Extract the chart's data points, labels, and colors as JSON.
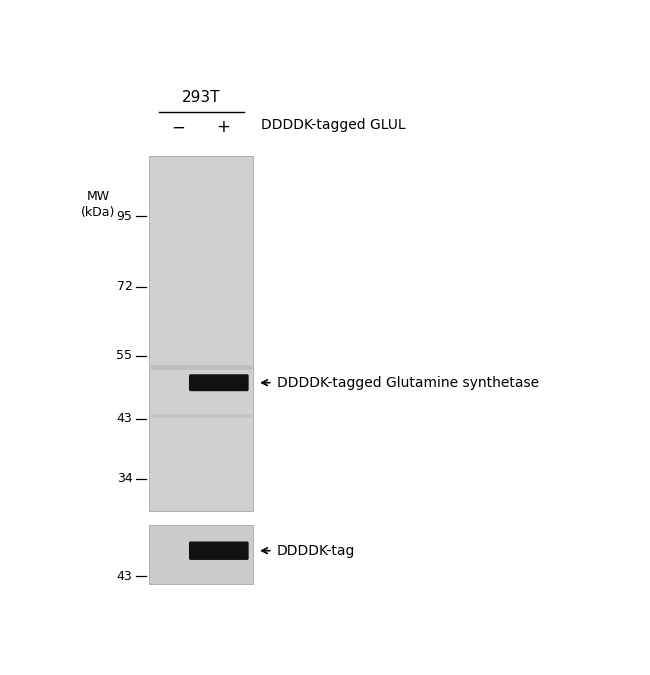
{
  "fig_width": 6.5,
  "fig_height": 6.75,
  "bg_color": "#ffffff",
  "gel_bg": "#d0d0d0",
  "gel_bg2": "#c8c8c8",
  "band_color": "#111111",
  "faint_band_color": "#b8b8b8",
  "title_293T": "293T",
  "lane_minus": "−",
  "lane_plus": "+",
  "label_ddddk_glul": "DDDDK-tagged GLUL",
  "label_mw": "MW\n(kDa)",
  "mw_marks": [
    95,
    72,
    55,
    43,
    34
  ],
  "annotation1": "DDDDK-tagged Glutamine synthetase",
  "annotation2": "DDDDK-tag",
  "font_size_labels": 10,
  "font_size_mw": 9,
  "font_size_annot": 10,
  "font_size_293T": 11,
  "font_size_lane": 12
}
